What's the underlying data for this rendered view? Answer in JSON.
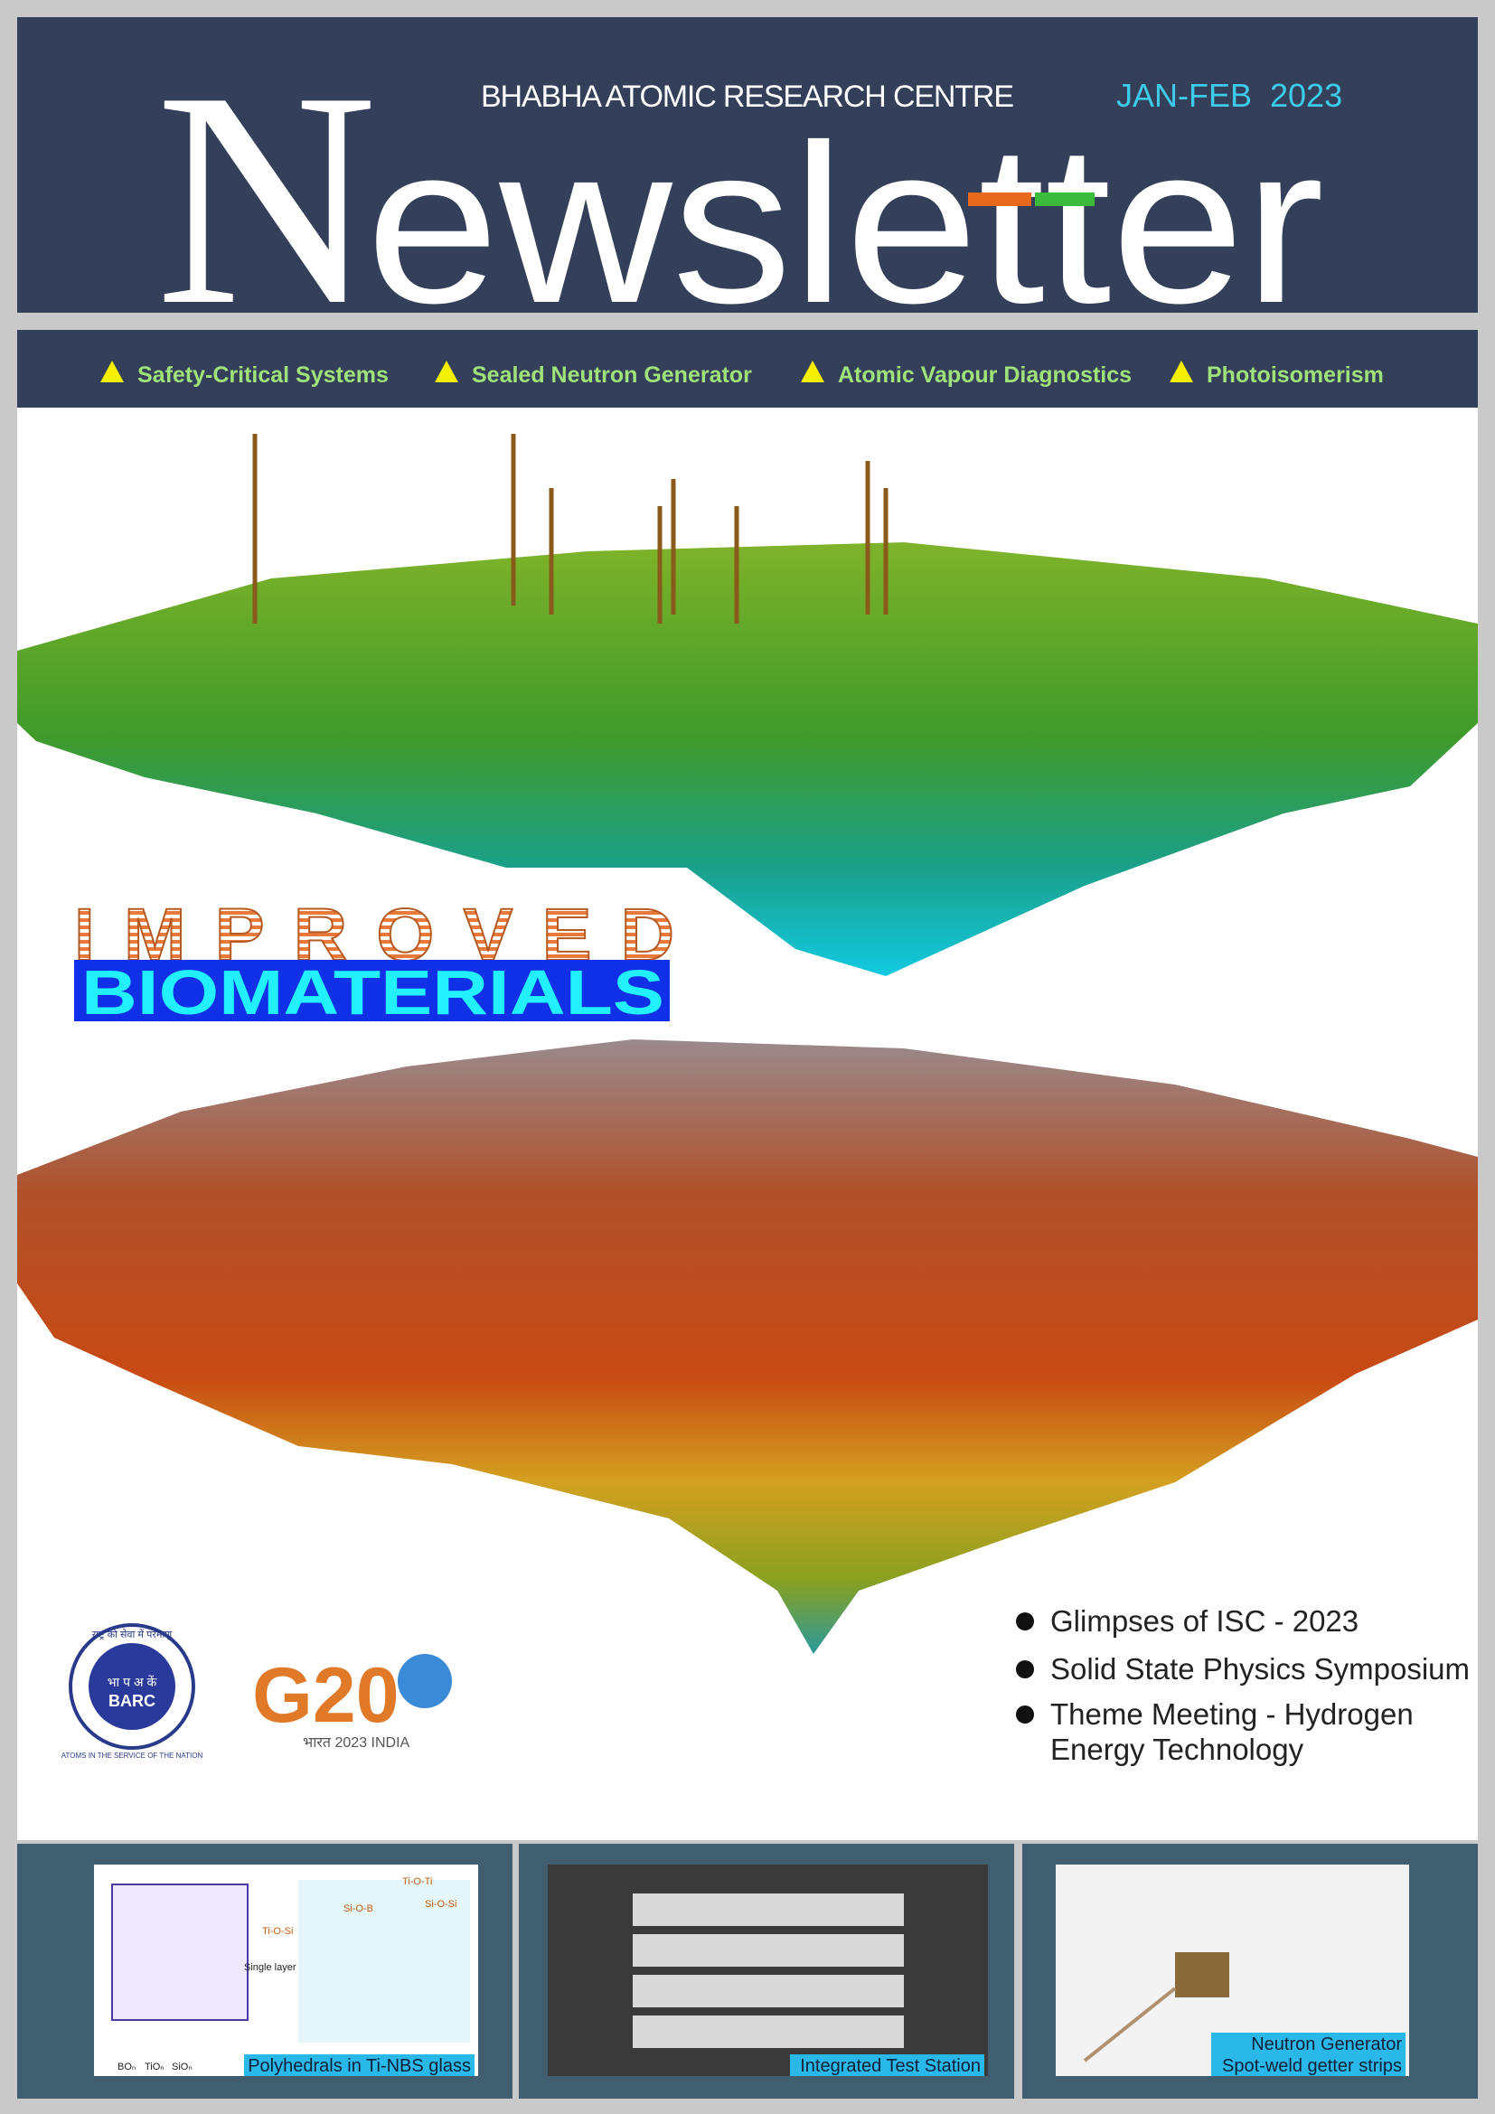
{
  "header": {
    "organization": "BHABHA ATOMIC RESEARCH CENTRE",
    "issue": "JAN-FEB  2023",
    "title_initial": "N",
    "title_rest": "ewsletter"
  },
  "topics": [
    "Safety-Critical Systems",
    "Sealed Neutron Generator",
    "Atomic Vapour Diagnostics",
    "Photoisomerism"
  ],
  "cover": {
    "line1": "IMPROVED",
    "line2": "BIOMATERIALS"
  },
  "logos": {
    "barc_motto": "राष्ट्र की सेवा में परमाणु",
    "barc_hindi": "भा प अ कें",
    "barc_name": "BARC",
    "barc_tagline": "ATOMS IN THE SERVICE OF THE NATION",
    "g20_mark": "G20",
    "g20_caption": "भारत 2023 INDIA"
  },
  "highlights": [
    [
      "Glimpses of ISC - 2023"
    ],
    [
      "Solid State Physics Symposium"
    ],
    [
      "Theme Meeting - Hydrogen",
      "Energy Technology"
    ]
  ],
  "panels": [
    {
      "caption": [
        "Polyhedrals in Ti-NBS glass"
      ],
      "labels": [
        "Si-O-B",
        "Ti-O-Ti",
        "Ti-O-Si",
        "Si-O-Si",
        "Single layer",
        "BOₙ",
        "TiOₙ",
        "SiOₙ"
      ]
    },
    {
      "caption": [
        "Integrated Test Station"
      ]
    },
    {
      "caption": [
        "Neutron Generator",
        "Spot-weld getter strips"
      ]
    }
  ]
}
